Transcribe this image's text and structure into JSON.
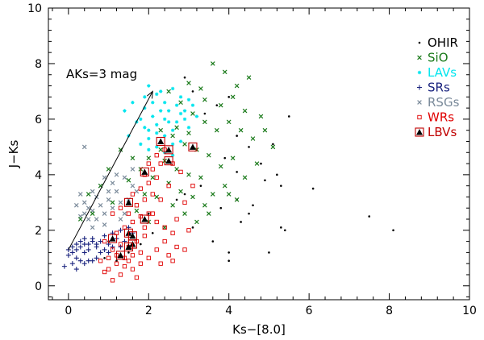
{
  "chart_data": {
    "type": "scatter",
    "xlabel": "Ks−[8.0]",
    "ylabel": "J−Ks",
    "xlim": [
      -0.5,
      10
    ],
    "ylim": [
      -0.5,
      10
    ],
    "x_ticks": [
      0,
      2,
      4,
      6,
      8,
      10
    ],
    "y_ticks": [
      0,
      2,
      4,
      6,
      8,
      10
    ],
    "grid": false,
    "legend_position": "top-right",
    "annotation": {
      "text": "AKs=3 mag",
      "arrow_from": [
        0.0,
        1.3
      ],
      "arrow_to": [
        2.1,
        7.0
      ]
    },
    "series": [
      {
        "name": "OHIR",
        "marker": "dot",
        "color": "#000000",
        "points": [
          [
            2.9,
            7.5
          ],
          [
            3.1,
            7.0
          ],
          [
            3.4,
            6.2
          ],
          [
            3.7,
            6.5
          ],
          [
            4.0,
            6.8
          ],
          [
            4.2,
            5.4
          ],
          [
            4.5,
            5.0
          ],
          [
            4.8,
            4.4
          ],
          [
            5.1,
            5.1
          ],
          [
            5.2,
            4.0
          ],
          [
            5.3,
            3.6
          ],
          [
            4.9,
            3.8
          ],
          [
            5.5,
            6.1
          ],
          [
            6.1,
            3.5
          ],
          [
            7.5,
            2.5
          ],
          [
            8.1,
            2.0
          ],
          [
            4.3,
            2.3
          ],
          [
            3.6,
            1.6
          ],
          [
            4.0,
            1.2
          ],
          [
            4.5,
            2.6
          ],
          [
            5.0,
            1.2
          ],
          [
            5.3,
            2.1
          ],
          [
            3.8,
            2.8
          ],
          [
            4.2,
            3.1
          ],
          [
            4.0,
            0.9
          ],
          [
            5.4,
            2.0
          ],
          [
            4.2,
            4.1
          ],
          [
            3.9,
            4.6
          ],
          [
            2.9,
            3.3
          ],
          [
            2.7,
            3.1
          ],
          [
            3.1,
            2.1
          ],
          [
            1.2,
            0.9
          ],
          [
            0.9,
            1.0
          ],
          [
            1.5,
            1.2
          ],
          [
            1.8,
            1.5
          ],
          [
            2.1,
            1.9
          ],
          [
            1.0,
            1.6
          ],
          [
            2.0,
            2.6
          ],
          [
            3.3,
            3.6
          ],
          [
            4.6,
            2.9
          ]
        ]
      },
      {
        "name": "SiO",
        "marker": "x",
        "color": "#1a7a1a",
        "points": [
          [
            3.0,
            7.3
          ],
          [
            3.3,
            7.1
          ],
          [
            3.6,
            8.0
          ],
          [
            3.9,
            7.7
          ],
          [
            4.2,
            7.2
          ],
          [
            4.5,
            7.5
          ],
          [
            4.1,
            6.8
          ],
          [
            3.8,
            6.5
          ],
          [
            2.5,
            7.0
          ],
          [
            2.8,
            6.6
          ],
          [
            3.1,
            6.2
          ],
          [
            3.4,
            5.9
          ],
          [
            3.7,
            5.6
          ],
          [
            4.0,
            5.9
          ],
          [
            4.3,
            5.6
          ],
          [
            4.6,
            5.3
          ],
          [
            4.8,
            6.1
          ],
          [
            5.1,
            5.0
          ],
          [
            4.4,
            6.3
          ],
          [
            2.3,
            5.6
          ],
          [
            2.6,
            5.4
          ],
          [
            2.9,
            5.1
          ],
          [
            3.2,
            4.9
          ],
          [
            3.5,
            4.7
          ],
          [
            3.8,
            4.3
          ],
          [
            4.1,
            4.6
          ],
          [
            4.4,
            3.9
          ],
          [
            4.7,
            4.4
          ],
          [
            2.0,
            4.6
          ],
          [
            2.4,
            4.5
          ],
          [
            2.7,
            4.2
          ],
          [
            3.0,
            4.0
          ],
          [
            3.3,
            3.9
          ],
          [
            3.6,
            3.3
          ],
          [
            3.9,
            3.6
          ],
          [
            4.2,
            3.1
          ],
          [
            2.1,
            3.9
          ],
          [
            2.5,
            3.7
          ],
          [
            2.8,
            3.4
          ],
          [
            3.1,
            3.2
          ],
          [
            3.4,
            2.9
          ],
          [
            1.8,
            4.2
          ],
          [
            2.2,
            3.2
          ],
          [
            2.6,
            2.9
          ],
          [
            2.9,
            2.6
          ],
          [
            3.2,
            2.3
          ],
          [
            1.9,
            3.3
          ],
          [
            1.6,
            4.6
          ],
          [
            1.3,
            4.9
          ],
          [
            1.0,
            4.2
          ],
          [
            0.8,
            3.6
          ],
          [
            0.5,
            3.3
          ],
          [
            1.5,
            3.8
          ],
          [
            1.1,
            3.0
          ],
          [
            0.3,
            2.4
          ],
          [
            0.6,
            2.6
          ],
          [
            2.4,
            2.1
          ],
          [
            2.0,
            2.3
          ],
          [
            3.4,
            6.7
          ],
          [
            2.7,
            5.7
          ],
          [
            3.5,
            2.6
          ],
          [
            4.0,
            3.3
          ],
          [
            1.7,
            2.7
          ],
          [
            2.3,
            4.9
          ],
          [
            3.0,
            5.5
          ],
          [
            4.9,
            5.6
          ]
        ]
      },
      {
        "name": "LAVs",
        "marker": "star",
        "color": "#00e5ee",
        "points": [
          [
            2.0,
            7.2
          ],
          [
            2.2,
            6.9
          ],
          [
            2.4,
            6.6
          ],
          [
            2.6,
            7.1
          ],
          [
            2.8,
            6.8
          ],
          [
            1.9,
            6.4
          ],
          [
            2.1,
            6.1
          ],
          [
            2.3,
            6.3
          ],
          [
            2.5,
            5.9
          ],
          [
            2.7,
            6.5
          ],
          [
            2.9,
            6.0
          ],
          [
            3.1,
            6.5
          ],
          [
            2.0,
            5.6
          ],
          [
            2.2,
            5.8
          ],
          [
            2.4,
            5.4
          ],
          [
            2.6,
            5.6
          ],
          [
            2.8,
            5.2
          ],
          [
            3.0,
            5.7
          ],
          [
            1.8,
            5.1
          ],
          [
            2.0,
            5.3
          ],
          [
            2.2,
            5.0
          ],
          [
            2.4,
            4.8
          ],
          [
            2.6,
            5.1
          ],
          [
            1.7,
            5.9
          ],
          [
            1.9,
            6.8
          ],
          [
            2.1,
            6.6
          ],
          [
            2.3,
            7.0
          ],
          [
            2.5,
            6.3
          ],
          [
            2.7,
            5.9
          ],
          [
            2.9,
            6.3
          ],
          [
            3.2,
            6.1
          ],
          [
            1.4,
            6.3
          ],
          [
            1.6,
            6.6
          ],
          [
            1.8,
            6.0
          ],
          [
            3.0,
            6.7
          ],
          [
            2.2,
            5.5
          ],
          [
            2.0,
            4.9
          ],
          [
            2.6,
            4.7
          ],
          [
            1.5,
            5.4
          ],
          [
            2.4,
            6.0
          ],
          [
            2.8,
            6.2
          ],
          [
            1.9,
            5.7
          ]
        ]
      },
      {
        "name": "SRs",
        "marker": "plus",
        "color": "#1a237e",
        "points": [
          [
            0.0,
            1.1
          ],
          [
            0.1,
            1.2
          ],
          [
            0.2,
            1.3
          ],
          [
            0.3,
            1.4
          ],
          [
            0.4,
            1.5
          ],
          [
            0.5,
            1.5
          ],
          [
            0.6,
            1.6
          ],
          [
            0.3,
            1.6
          ],
          [
            0.2,
            1.5
          ],
          [
            0.5,
            1.3
          ],
          [
            0.7,
            1.4
          ],
          [
            0.8,
            1.6
          ],
          [
            0.4,
            1.2
          ],
          [
            0.1,
            1.4
          ],
          [
            0.6,
            1.7
          ],
          [
            0.9,
            1.8
          ],
          [
            1.0,
            1.5
          ],
          [
            1.2,
            1.7
          ],
          [
            1.4,
            1.6
          ],
          [
            1.6,
            1.9
          ],
          [
            1.3,
            2.0
          ],
          [
            1.1,
            1.9
          ],
          [
            1.5,
            2.1
          ],
          [
            0.7,
            1.0
          ],
          [
            0.5,
            0.9
          ],
          [
            -0.1,
            0.7
          ],
          [
            0.1,
            0.8
          ],
          [
            0.3,
            0.9
          ],
          [
            0.2,
            0.6
          ],
          [
            0.8,
            1.2
          ],
          [
            0.4,
            0.8
          ],
          [
            0.6,
            0.9
          ],
          [
            1.0,
            1.2
          ],
          [
            0.0,
            1.3
          ],
          [
            0.2,
            1.0
          ],
          [
            0.4,
            1.7
          ],
          [
            0.7,
            1.5
          ],
          [
            0.9,
            1.3
          ],
          [
            1.1,
            1.4
          ],
          [
            1.3,
            1.4
          ]
        ]
      },
      {
        "name": "RSGs",
        "marker": "x",
        "color": "#7a8a9a",
        "points": [
          [
            0.4,
            3.0
          ],
          [
            0.5,
            2.8
          ],
          [
            0.6,
            2.7
          ],
          [
            0.7,
            3.2
          ],
          [
            0.8,
            2.9
          ],
          [
            0.9,
            2.6
          ],
          [
            1.0,
            3.1
          ],
          [
            1.1,
            2.8
          ],
          [
            1.2,
            3.4
          ],
          [
            1.3,
            3.0
          ],
          [
            1.4,
            2.6
          ],
          [
            0.3,
            2.5
          ],
          [
            0.5,
            2.4
          ],
          [
            0.6,
            3.4
          ],
          [
            0.8,
            3.6
          ],
          [
            1.0,
            3.4
          ],
          [
            0.7,
            2.4
          ],
          [
            0.9,
            3.9
          ],
          [
            1.2,
            4.0
          ],
          [
            1.5,
            3.1
          ],
          [
            1.6,
            3.6
          ],
          [
            1.1,
            3.7
          ],
          [
            0.3,
            3.3
          ],
          [
            0.2,
            2.9
          ],
          [
            0.4,
            2.6
          ],
          [
            1.4,
            3.9
          ],
          [
            1.6,
            4.2
          ],
          [
            0.9,
            2.2
          ],
          [
            0.6,
            2.1
          ],
          [
            0.4,
            5.0
          ],
          [
            1.3,
            2.4
          ],
          [
            1.7,
            3.4
          ]
        ]
      },
      {
        "name": "WRs",
        "marker": "square",
        "color": "#e00000",
        "points": [
          [
            1.0,
            0.6
          ],
          [
            1.2,
            0.8
          ],
          [
            1.4,
            1.0
          ],
          [
            1.6,
            1.1
          ],
          [
            1.8,
            1.2
          ],
          [
            1.1,
            1.3
          ],
          [
            1.3,
            1.5
          ],
          [
            1.5,
            1.4
          ],
          [
            1.7,
            1.6
          ],
          [
            1.9,
            1.8
          ],
          [
            1.2,
            1.9
          ],
          [
            1.4,
            2.1
          ],
          [
            1.6,
            2.3
          ],
          [
            1.8,
            2.5
          ],
          [
            2.0,
            2.6
          ],
          [
            1.5,
            2.6
          ],
          [
            1.7,
            2.9
          ],
          [
            1.9,
            3.1
          ],
          [
            2.1,
            3.3
          ],
          [
            1.6,
            3.3
          ],
          [
            1.8,
            3.5
          ],
          [
            2.0,
            3.7
          ],
          [
            2.2,
            3.9
          ],
          [
            1.9,
            4.0
          ],
          [
            2.1,
            4.2
          ],
          [
            2.3,
            4.4
          ],
          [
            2.0,
            4.4
          ],
          [
            2.2,
            4.7
          ],
          [
            2.4,
            4.9
          ],
          [
            2.6,
            4.4
          ],
          [
            2.5,
            3.6
          ],
          [
            2.3,
            3.1
          ],
          [
            2.1,
            2.6
          ],
          [
            1.9,
            2.1
          ],
          [
            1.3,
            0.4
          ],
          [
            1.1,
            0.2
          ],
          [
            0.9,
            0.5
          ],
          [
            0.8,
            0.9
          ],
          [
            1.0,
            1.0
          ],
          [
            1.2,
            1.1
          ],
          [
            1.4,
            0.7
          ],
          [
            1.6,
            0.6
          ],
          [
            1.8,
            0.8
          ],
          [
            2.0,
            1.0
          ],
          [
            2.2,
            1.3
          ],
          [
            2.4,
            1.6
          ],
          [
            2.6,
            1.9
          ],
          [
            2.7,
            1.4
          ],
          [
            2.5,
            1.1
          ],
          [
            2.3,
            0.8
          ],
          [
            1.7,
            0.3
          ],
          [
            1.5,
            0.9
          ],
          [
            2.7,
            2.4
          ],
          [
            2.9,
            3.0
          ],
          [
            3.1,
            3.6
          ],
          [
            2.8,
            4.1
          ],
          [
            2.4,
            2.1
          ],
          [
            2.2,
            2.3
          ],
          [
            1.3,
            2.8
          ],
          [
            1.1,
            2.6
          ],
          [
            0.9,
            1.6
          ],
          [
            2.9,
            1.3
          ],
          [
            3.0,
            2.0
          ],
          [
            2.6,
            0.9
          ]
        ]
      },
      {
        "name": "LBVs",
        "marker": "triangle",
        "color": "#c00000",
        "points": [
          [
            2.3,
            5.2
          ],
          [
            2.5,
            4.9
          ],
          [
            3.1,
            5.0
          ],
          [
            2.5,
            4.5
          ],
          [
            1.9,
            4.1
          ],
          [
            1.5,
            3.0
          ],
          [
            1.9,
            2.4
          ],
          [
            1.5,
            1.9
          ],
          [
            1.6,
            1.5
          ],
          [
            1.1,
            1.7
          ],
          [
            1.5,
            1.4
          ],
          [
            1.3,
            1.1
          ],
          [
            1.6,
            1.8
          ]
        ]
      }
    ]
  }
}
